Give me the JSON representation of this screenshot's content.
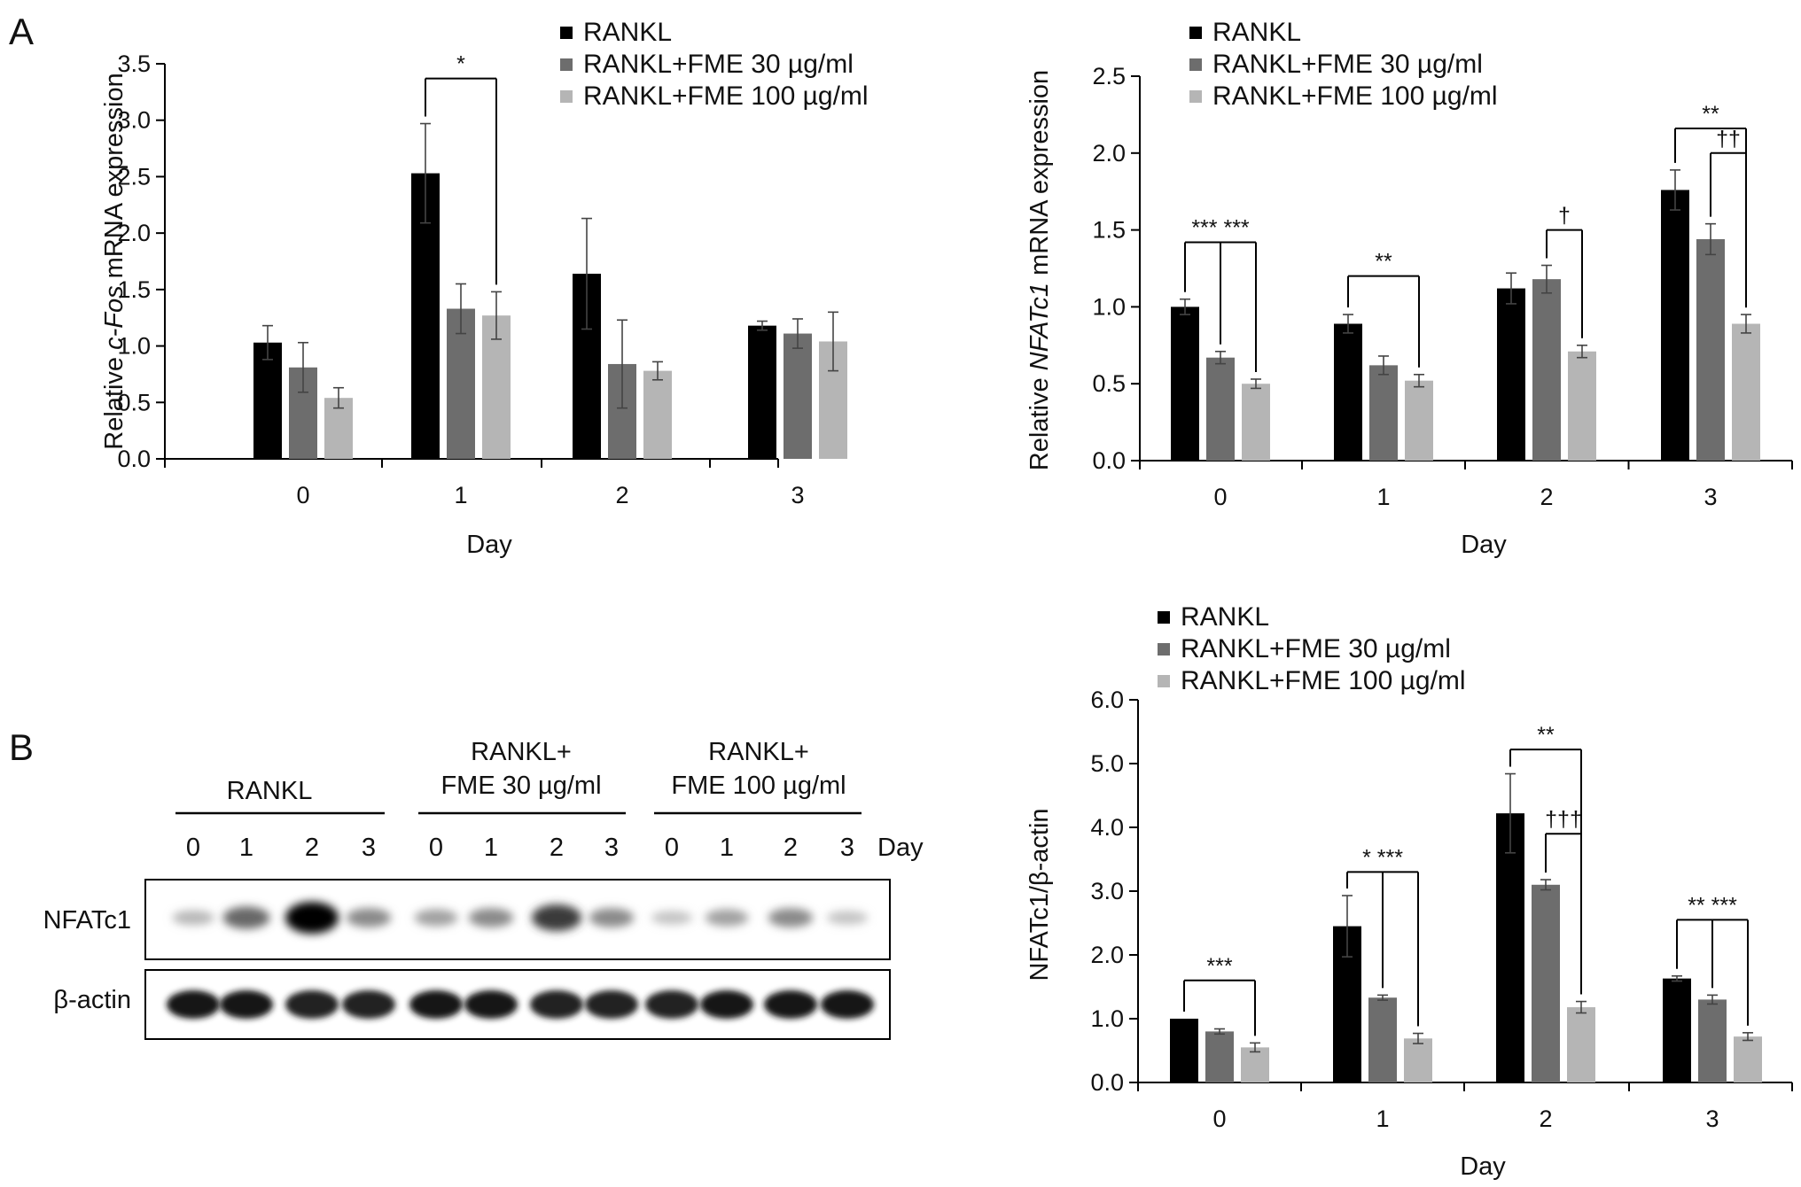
{
  "panels": {
    "a": "A",
    "b": "B"
  },
  "colors": {
    "RANKL": "#000000",
    "FME30": "#6d6d6d",
    "FME100": "#b5b5b5"
  },
  "legend": [
    "RANKL",
    "RANKL+FME 30 µg/ml",
    "RANKL+FME 100 µg/ml"
  ],
  "blot": {
    "groups": [
      "RANKL",
      "RANKL+\nFME 30 µg/ml",
      "RANKL+\nFME 100 µg/ml"
    ],
    "days": [
      "0",
      "1",
      "2",
      "3",
      "0",
      "1",
      "2",
      "3",
      "0",
      "1",
      "2",
      "3"
    ],
    "day_label": "Day",
    "rows": [
      "NFATc1",
      "β-actin"
    ],
    "nfatc1_intensity": [
      0.2,
      0.55,
      1.0,
      0.4,
      0.3,
      0.4,
      0.75,
      0.4,
      0.15,
      0.3,
      0.4,
      0.15
    ],
    "actin_intensity": [
      0.95,
      0.95,
      0.9,
      0.9,
      0.95,
      0.95,
      0.9,
      0.9,
      0.9,
      0.95,
      0.95,
      0.95
    ]
  },
  "chart_data": [
    {
      "id": "cfos",
      "type": "bar",
      "categories": [
        "0",
        "1",
        "2",
        "3"
      ],
      "xlabel": "Day",
      "ylabel_parts": [
        "Relative ",
        "c-Fos",
        " mRNA expression"
      ],
      "ylim": [
        0,
        3.5
      ],
      "yticks": [
        "0.0",
        "0.5",
        "1.0",
        "1.5",
        "2.0",
        "2.5",
        "3.0",
        "3.5"
      ],
      "series": [
        {
          "name": "RANKL",
          "values": [
            1.03,
            2.53,
            1.64,
            1.18
          ],
          "errors": [
            0.15,
            0.44,
            0.49,
            0.04
          ]
        },
        {
          "name": "RANKL+FME 30 µg/ml",
          "values": [
            0.81,
            1.33,
            0.84,
            1.11
          ],
          "errors": [
            0.22,
            0.22,
            0.39,
            0.13
          ]
        },
        {
          "name": "RANKL+FME 100 µg/ml",
          "values": [
            0.54,
            1.27,
            0.78,
            1.04
          ],
          "errors": [
            0.09,
            0.21,
            0.08,
            0.26
          ]
        }
      ],
      "annotations": [
        {
          "category": 1,
          "from": 0,
          "to": [
            2
          ],
          "y": 3.37,
          "label": "*"
        }
      ]
    },
    {
      "id": "nfatc1_mrna",
      "type": "bar",
      "categories": [
        "0",
        "1",
        "2",
        "3"
      ],
      "xlabel": "Day",
      "ylabel_parts": [
        "Relative ",
        "NFATc1",
        " mRNA expression"
      ],
      "ylim": [
        0,
        2.5
      ],
      "yticks": [
        "0.0",
        "0.5",
        "1.0",
        "1.5",
        "2.0",
        "2.5"
      ],
      "series": [
        {
          "name": "RANKL",
          "values": [
            1.0,
            0.89,
            1.12,
            1.76
          ],
          "errors": [
            0.05,
            0.06,
            0.1,
            0.13
          ]
        },
        {
          "name": "RANKL+FME 30 µg/ml",
          "values": [
            0.67,
            0.62,
            1.18,
            1.44
          ],
          "errors": [
            0.04,
            0.06,
            0.09,
            0.1
          ]
        },
        {
          "name": "RANKL+FME 100 µg/ml",
          "values": [
            0.5,
            0.52,
            0.71,
            0.89
          ],
          "errors": [
            0.03,
            0.04,
            0.04,
            0.06
          ]
        }
      ],
      "annotations": [
        {
          "category": 0,
          "from": 0,
          "to": [
            1,
            2
          ],
          "y": 1.42,
          "label": "*** ***"
        },
        {
          "category": 1,
          "from": 0,
          "to": [
            2
          ],
          "y": 1.2,
          "label": "**"
        },
        {
          "category": 2,
          "from": 1,
          "to": [
            2
          ],
          "y": 1.5,
          "label": "†"
        },
        {
          "category": 3,
          "from": 0,
          "to": [
            2
          ],
          "y": 2.16,
          "label": "**"
        },
        {
          "category": 3,
          "from": 1,
          "to": [
            2
          ],
          "y": 2.0,
          "label": "††"
        }
      ]
    },
    {
      "id": "nfatc1_protein",
      "type": "bar",
      "categories": [
        "0",
        "1",
        "2",
        "3"
      ],
      "xlabel": "Day",
      "ylabel_parts": [
        "NFATc1/β-actin"
      ],
      "ylim": [
        0,
        6.0
      ],
      "yticks": [
        "0.0",
        "1.0",
        "2.0",
        "3.0",
        "4.0",
        "5.0",
        "6.0"
      ],
      "series": [
        {
          "name": "RANKL",
          "values": [
            1.0,
            2.45,
            4.22,
            1.63
          ],
          "errors": [
            0.0,
            0.48,
            0.62,
            0.04
          ]
        },
        {
          "name": "RANKL+FME 30 µg/ml",
          "values": [
            0.8,
            1.33,
            3.1,
            1.3
          ],
          "errors": [
            0.04,
            0.04,
            0.08,
            0.07
          ]
        },
        {
          "name": "RANKL+FME 100 µg/ml",
          "values": [
            0.55,
            0.69,
            1.18,
            0.72
          ],
          "errors": [
            0.07,
            0.08,
            0.09,
            0.06
          ]
        }
      ],
      "annotations": [
        {
          "category": 0,
          "from": 0,
          "to": [
            2
          ],
          "y": 1.6,
          "label": "***"
        },
        {
          "category": 1,
          "from": 0,
          "to": [
            1,
            2
          ],
          "y": 3.3,
          "label": "* ***"
        },
        {
          "category": 2,
          "from": 0,
          "to": [
            2
          ],
          "y": 5.22,
          "label": "**"
        },
        {
          "category": 2,
          "from": 1,
          "to": [
            2
          ],
          "y": 3.9,
          "label": "†††"
        },
        {
          "category": 3,
          "from": 0,
          "to": [
            1,
            2
          ],
          "y": 2.55,
          "label": "** ***"
        }
      ]
    }
  ]
}
